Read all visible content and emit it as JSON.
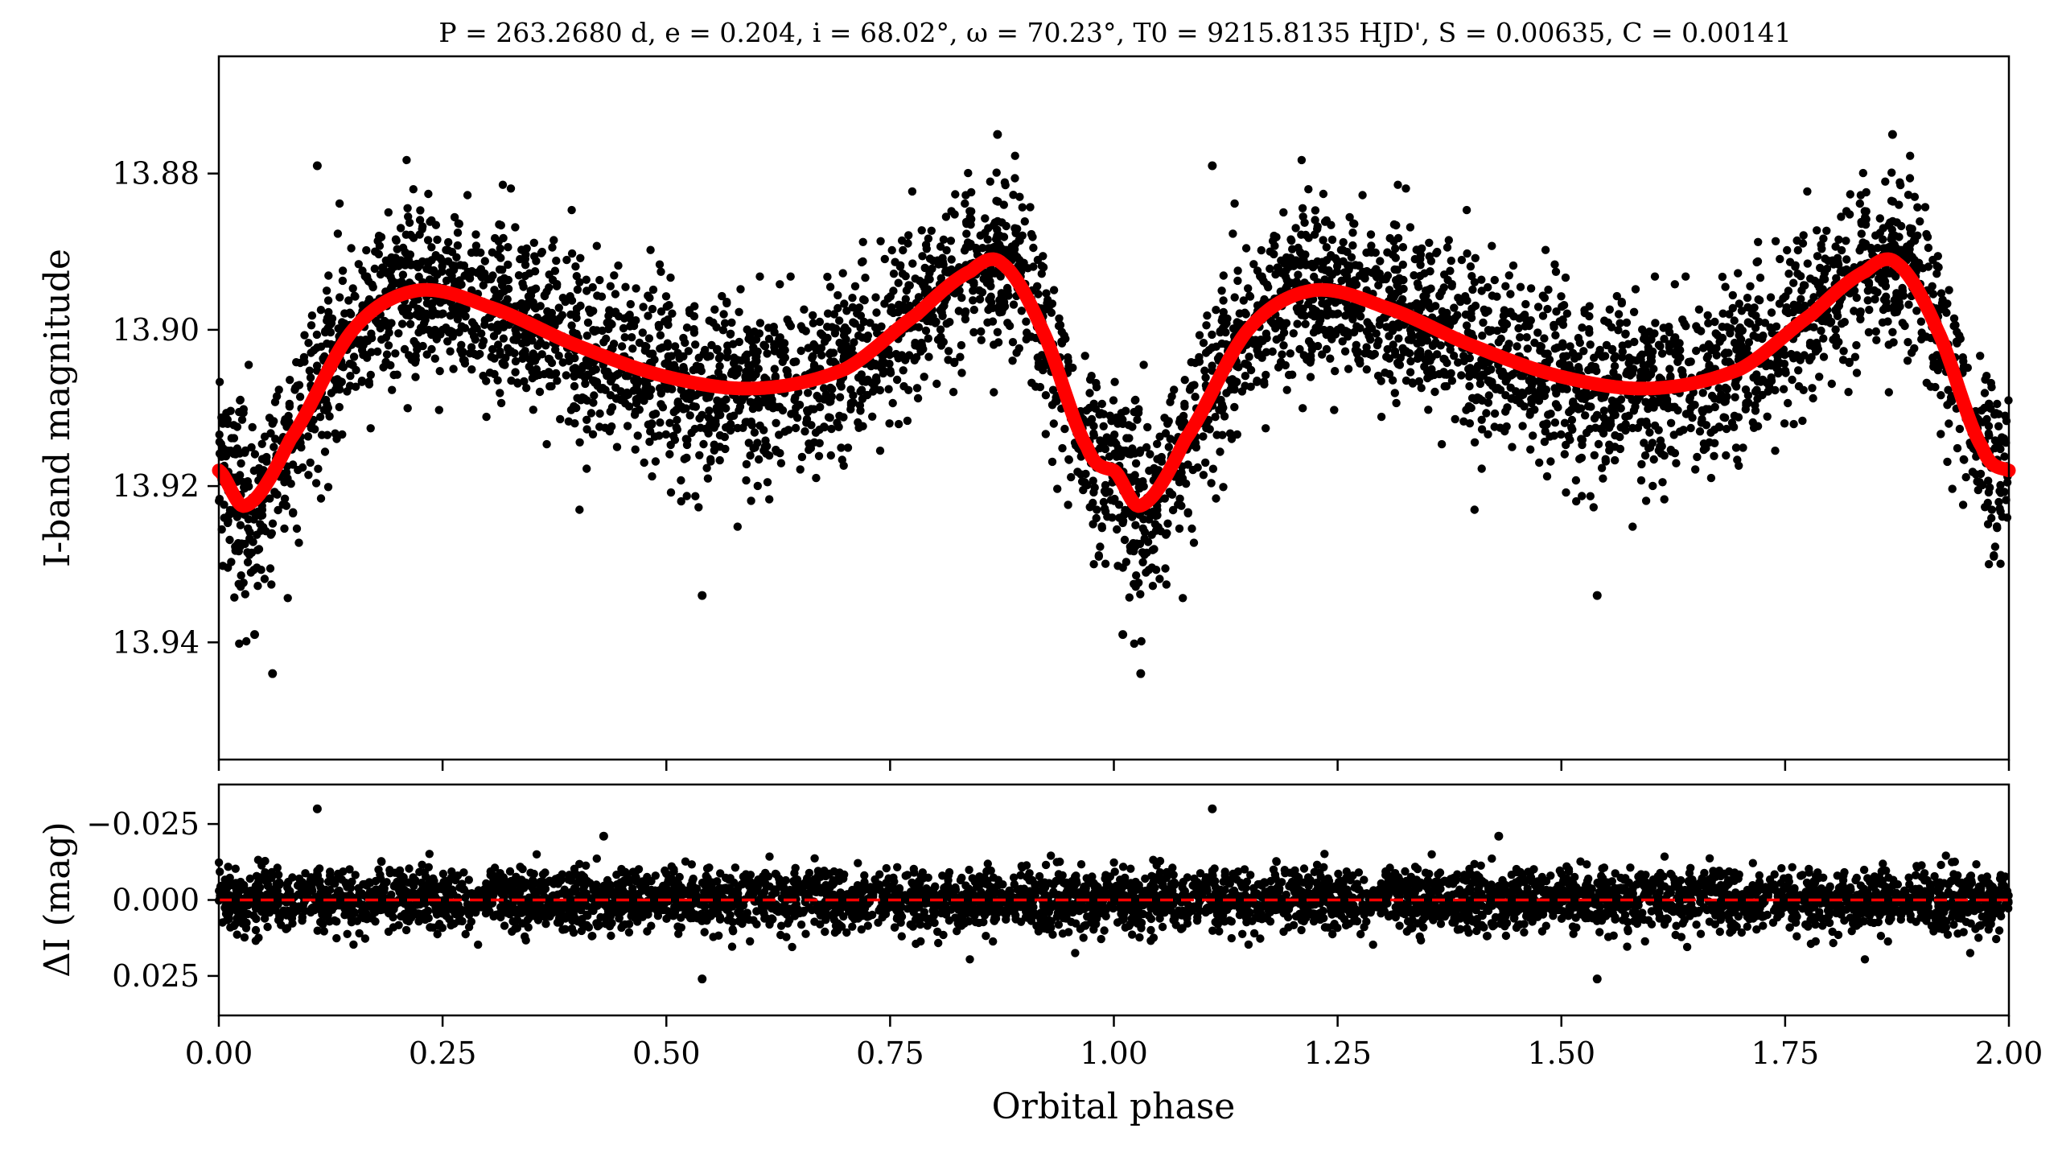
{
  "chart_data": [
    {
      "type": "scatter",
      "panel": "light curve",
      "title": "P = 263.2680 d, e = 0.204, i = 68.02°, ω = 70.23°, T0 = 9215.8135 HJD', S = 0.00635, C = 0.00141",
      "xlabel": "",
      "ylabel": "I-band magnitude",
      "xlim": [
        0,
        2
      ],
      "ylim": [
        13.955,
        13.865
      ],
      "y_inverted": true,
      "yticks": [
        "13.88",
        "13.90",
        "13.92",
        "13.94"
      ],
      "xticks_labeled": false,
      "grid": false,
      "series": [
        {
          "kind": "points",
          "color": "#000000",
          "description_of_points": "thousands of phase-folded photometric measurements; roughly periodic with phase period 1",
          "phase_profile": {
            "x": [
              0.0,
              0.03,
              0.08,
              0.15,
              0.22,
              0.3,
              0.4,
              0.5,
              0.6,
              0.7,
              0.78,
              0.84,
              0.875,
              0.92,
              0.97,
              1.0
            ],
            "y": [
              13.918,
              13.9225,
              13.914,
              13.9,
              13.895,
              13.897,
              13.902,
              13.906,
              13.9075,
              13.905,
              13.898,
              13.8925,
              13.8915,
              13.9,
              13.915,
              13.918
            ]
          },
          "scatter_sigma_mag": 0.0055,
          "notable_outliers": [
            {
              "x": 0.11,
              "y": 13.879
            },
            {
              "x": 0.87,
              "y": 13.875
            },
            {
              "x": 1.11,
              "y": 13.879
            },
            {
              "x": 1.87,
              "y": 13.875
            },
            {
              "x": 0.54,
              "y": 13.934
            },
            {
              "x": 1.54,
              "y": 13.934
            },
            {
              "x": 0.06,
              "y": 13.944
            },
            {
              "x": 1.03,
              "y": 13.944
            },
            {
              "x": 0.04,
              "y": 13.939
            },
            {
              "x": 1.01,
              "y": 13.939
            }
          ]
        },
        {
          "kind": "model",
          "color": "#ff0000",
          "x": [
            0.0,
            0.03,
            0.08,
            0.15,
            0.22,
            0.3,
            0.4,
            0.5,
            0.6,
            0.7,
            0.78,
            0.84,
            0.875,
            0.92,
            0.97,
            1.0,
            1.03,
            1.08,
            1.15,
            1.22,
            1.3,
            1.4,
            1.5,
            1.6,
            1.7,
            1.78,
            1.84,
            1.875,
            1.92,
            1.97,
            2.0
          ],
          "y": [
            13.918,
            13.9225,
            13.914,
            13.9,
            13.895,
            13.897,
            13.902,
            13.906,
            13.9075,
            13.905,
            13.898,
            13.8925,
            13.8915,
            13.9,
            13.915,
            13.918,
            13.9225,
            13.914,
            13.9,
            13.895,
            13.897,
            13.902,
            13.906,
            13.9075,
            13.905,
            13.898,
            13.8925,
            13.8915,
            13.9,
            13.915,
            13.918
          ]
        }
      ]
    },
    {
      "type": "scatter",
      "panel": "residuals",
      "xlabel": "Orbital phase",
      "ylabel": "ΔI (mag)",
      "xlim": [
        0,
        2
      ],
      "ylim": [
        0.038,
        -0.038
      ],
      "y_inverted": true,
      "xticks": [
        "0.00",
        "0.25",
        "0.50",
        "0.75",
        "1.00",
        "1.25",
        "1.50",
        "1.75",
        "2.00"
      ],
      "yticks": [
        "−0.025",
        "0.000",
        "0.025"
      ],
      "grid": false,
      "series": [
        {
          "kind": "points",
          "color": "#000000",
          "scatter_sigma_mag": 0.0048,
          "notable_outliers": [
            {
              "x": 0.11,
              "y": -0.03
            },
            {
              "x": 1.11,
              "y": -0.03
            },
            {
              "x": 0.54,
              "y": 0.026
            },
            {
              "x": 1.54,
              "y": 0.026
            },
            {
              "x": 0.43,
              "y": -0.021
            },
            {
              "x": 1.43,
              "y": -0.021
            }
          ]
        },
        {
          "kind": "zero-line",
          "style": "dashed",
          "color": "#ff0000",
          "y": 0.0
        }
      ]
    }
  ],
  "colors": {
    "points": "#000000",
    "model": "#ff0000",
    "axes": "#000000"
  }
}
